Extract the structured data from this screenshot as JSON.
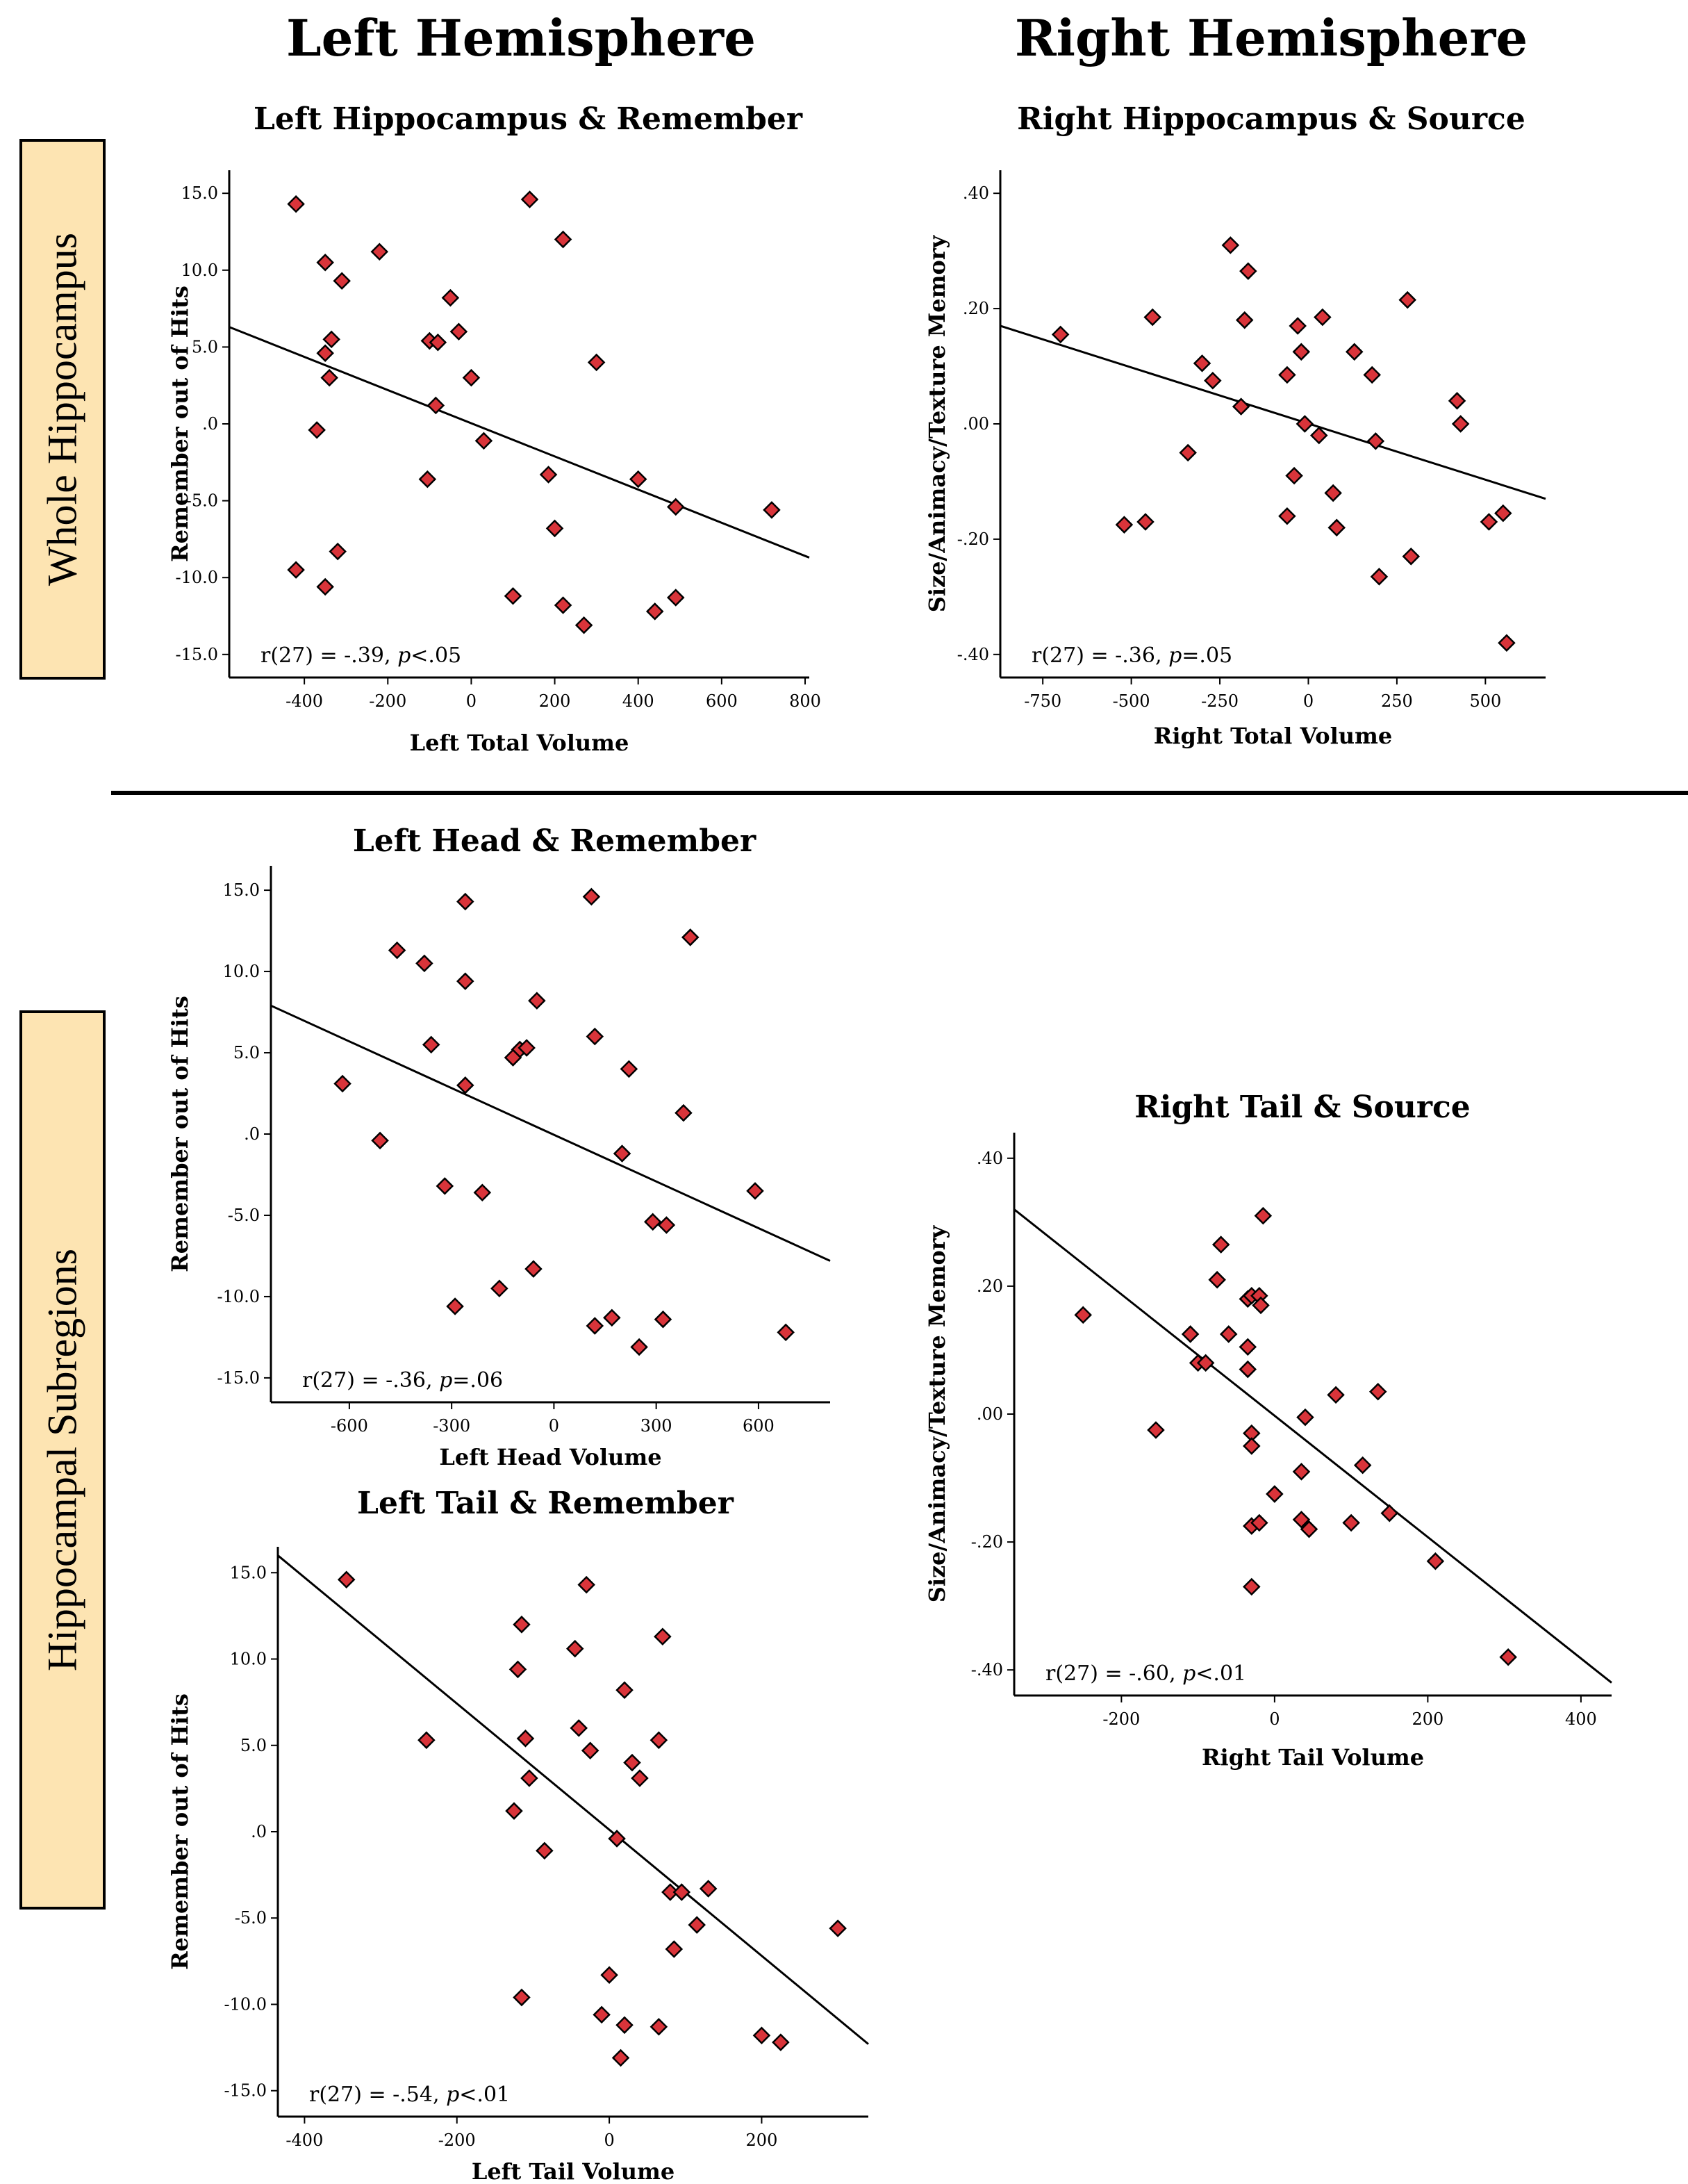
{
  "figure": {
    "left_heading": "Left Hemisphere",
    "right_heading": "Right Hemisphere",
    "row1_label": "Whole Hippocampus",
    "row2_label": "Hippocampal Subregions"
  },
  "colors": {
    "marker_fill": "#d9343a",
    "marker_stroke": "#000000",
    "line": "#000000"
  },
  "chart_data": [
    {
      "type": "scatter",
      "title": "Left Hippocampus & Remember",
      "xlabel": "Left Total Volume",
      "ylabel": "Remember out of Hits",
      "xlim": [
        -580,
        810
      ],
      "ylim": [
        -16.5,
        16.5
      ],
      "xticks": [
        -400,
        -200,
        0,
        200,
        400,
        600,
        800
      ],
      "xtick_labels": [
        "-400",
        "-200",
        "0",
        "200",
        "400",
        "600",
        "800"
      ],
      "yticks": [
        15,
        10,
        5,
        0,
        -5,
        -10,
        -15
      ],
      "ytick_labels": [
        "15.0",
        "10.0",
        "5.0",
        ".0",
        "-5.0",
        "-10.0",
        "-15.0"
      ],
      "stat_r": "r(27) = -.39, ",
      "stat_p_sym": "p",
      "stat_p_val": "<.05",
      "fit_line": [
        [
          -580,
          6.3
        ],
        [
          810,
          -8.7
        ]
      ],
      "x": [
        -420,
        -350,
        -310,
        -220,
        -335,
        -350,
        -340,
        -370,
        -100,
        -80,
        -50,
        -30,
        -85,
        0,
        30,
        -105,
        140,
        220,
        300,
        185,
        200,
        400,
        490,
        720,
        -420,
        -350,
        -320,
        100,
        220,
        270,
        440,
        490
      ],
      "y": [
        14.3,
        10.5,
        9.3,
        11.2,
        5.5,
        4.6,
        3.0,
        -0.4,
        5.4,
        5.3,
        8.2,
        6.0,
        1.2,
        3.0,
        -1.1,
        -3.6,
        14.6,
        12.0,
        4.0,
        -3.3,
        -6.8,
        -3.6,
        -5.4,
        -5.6,
        -9.5,
        -10.6,
        -8.3,
        -11.2,
        -11.8,
        -13.1,
        -12.2,
        -11.3
      ]
    },
    {
      "type": "scatter",
      "title": "Right Hippocampus & Source",
      "xlabel": "Right Total Volume",
      "ylabel": "Size/Animacy/Texture Memory",
      "xlim": [
        -870,
        670
      ],
      "ylim": [
        -0.44,
        0.44
      ],
      "xticks": [
        -750,
        -500,
        -250,
        0,
        250,
        500
      ],
      "xtick_labels": [
        "-750",
        "-500",
        "-250",
        "0",
        "250",
        "500"
      ],
      "yticks": [
        0.4,
        0.2,
        0.0,
        -0.2,
        -0.4
      ],
      "ytick_labels": [
        ".40",
        ".20",
        ".00",
        "-.20",
        "-.40"
      ],
      "stat_r": "r(27) = -.36, ",
      "stat_p_sym": "p",
      "stat_p_val": "=.05",
      "fit_line": [
        [
          -870,
          0.17
        ],
        [
          670,
          -0.13
        ]
      ],
      "x": [
        -700,
        -440,
        -220,
        -170,
        -180,
        -300,
        -270,
        -190,
        -340,
        -60,
        -30,
        -20,
        40,
        -10,
        130,
        280,
        180,
        190,
        420,
        430,
        -520,
        -460,
        -60,
        -40,
        30,
        70,
        80,
        200,
        290,
        510,
        550,
        560
      ],
      "y": [
        0.155,
        0.185,
        0.31,
        0.265,
        0.18,
        0.105,
        0.075,
        0.03,
        -0.05,
        0.085,
        0.17,
        0.125,
        0.185,
        0.0,
        0.125,
        0.215,
        0.085,
        -0.03,
        0.04,
        0.0,
        -0.175,
        -0.17,
        -0.16,
        -0.09,
        -0.02,
        -0.12,
        -0.18,
        -0.265,
        -0.23,
        -0.17,
        -0.155,
        -0.38
      ]
    },
    {
      "type": "scatter",
      "title": "Left Head & Remember",
      "xlabel": "Left Head Volume",
      "ylabel": "Remember out of Hits",
      "xlim": [
        -830,
        810
      ],
      "ylim": [
        -16.5,
        16.5
      ],
      "xticks": [
        -600,
        -300,
        0,
        300,
        600
      ],
      "xtick_labels": [
        "-600",
        "-300",
        "0",
        "300",
        "600"
      ],
      "yticks": [
        15,
        10,
        5,
        0,
        -5,
        -10,
        -15
      ],
      "ytick_labels": [
        "15.0",
        "10.0",
        "5.0",
        ".0",
        "-5.0",
        "-10.0",
        "-15.0"
      ],
      "stat_r": "r(27) = -.36, ",
      "stat_p_sym": "p",
      "stat_p_val": "=.06",
      "fit_line": [
        [
          -830,
          7.9
        ],
        [
          810,
          -7.8
        ]
      ],
      "x": [
        -460,
        -380,
        -260,
        -260,
        -360,
        -620,
        -510,
        -100,
        -80,
        -50,
        -120,
        -260,
        110,
        120,
        220,
        400,
        380,
        200,
        290,
        330,
        590,
        680,
        -320,
        -210,
        -160,
        -60,
        -290,
        120,
        170,
        320,
        250
      ],
      "y": [
        11.3,
        10.5,
        14.3,
        9.4,
        5.5,
        3.1,
        -0.4,
        5.2,
        5.3,
        8.2,
        4.7,
        3.0,
        14.6,
        6.0,
        4.0,
        12.1,
        1.3,
        -1.2,
        -5.4,
        -5.6,
        -3.5,
        -12.2,
        -3.2,
        -3.6,
        -9.5,
        -8.3,
        -10.6,
        -11.8,
        -11.3,
        -11.4,
        -13.1
      ]
    },
    {
      "type": "scatter",
      "title": "Left Tail & Remember",
      "xlabel": "Left Tail Volume",
      "ylabel": "Remember out of Hits",
      "xlim": [
        -435,
        340
      ],
      "ylim": [
        -16.5,
        16.5
      ],
      "xticks": [
        -400,
        -200,
        0,
        200
      ],
      "xtick_labels": [
        "-400",
        "-200",
        "0",
        "200"
      ],
      "yticks": [
        15,
        10,
        5,
        0,
        -5,
        -10,
        -15
      ],
      "ytick_labels": [
        "15.0",
        "10.0",
        "5.0",
        ".0",
        "-5.0",
        "-10.0",
        "-15.0"
      ],
      "stat_r": "r(27) = -.54, ",
      "stat_p_sym": "p",
      "stat_p_val": "<.01",
      "fit_line": [
        [
          -435,
          16.0
        ],
        [
          340,
          -12.3
        ]
      ],
      "x": [
        -345,
        -115,
        -120,
        -240,
        -45,
        -40,
        -110,
        -105,
        -30,
        -25,
        20,
        30,
        40,
        65,
        70,
        -125,
        -85,
        10,
        80,
        95,
        130,
        115,
        85,
        300,
        -115,
        0,
        -10,
        20,
        65,
        200,
        225,
        15
      ],
      "y": [
        14.6,
        12.0,
        9.4,
        5.3,
        10.6,
        6.0,
        5.4,
        3.1,
        14.3,
        4.7,
        8.2,
        4.0,
        3.1,
        5.3,
        11.3,
        1.2,
        -1.1,
        -0.4,
        -3.5,
        -3.5,
        -3.3,
        -5.4,
        -6.8,
        -5.6,
        -9.6,
        -8.3,
        -10.6,
        -11.2,
        -11.3,
        -11.8,
        -12.2,
        -13.1
      ]
    },
    {
      "type": "scatter",
      "title": "Right Tail & Source",
      "xlabel": "Right Tail Volume",
      "ylabel": "Size/Animacy/Texture Memory",
      "xlim": [
        -340,
        440
      ],
      "ylim": [
        -0.44,
        0.44
      ],
      "xticks": [
        -200,
        0,
        200,
        400
      ],
      "xtick_labels": [
        "-200",
        "0",
        "200",
        "400"
      ],
      "yticks": [
        0.4,
        0.2,
        0.0,
        -0.2,
        -0.4
      ],
      "ytick_labels": [
        ".40",
        ".20",
        ".00",
        "-.20",
        "-.40"
      ],
      "stat_r": "r(27) = -.60, ",
      "stat_p_sym": "p",
      "stat_p_val": "<.01",
      "fit_line": [
        [
          -340,
          0.32
        ],
        [
          440,
          -0.42
        ]
      ],
      "x": [
        -250,
        -110,
        -100,
        -90,
        -155,
        -70,
        -75,
        -60,
        -35,
        -30,
        -20,
        -18,
        -15,
        -35,
        -35,
        -30,
        -30,
        40,
        80,
        135,
        115,
        -30,
        0,
        35,
        100,
        150,
        210,
        305,
        -30,
        -20,
        45,
        35
      ],
      "y": [
        0.155,
        0.125,
        0.08,
        0.08,
        -0.025,
        0.265,
        0.21,
        0.125,
        0.18,
        0.185,
        0.185,
        0.17,
        0.31,
        0.105,
        0.07,
        -0.03,
        -0.05,
        -0.005,
        0.03,
        0.035,
        -0.08,
        -0.27,
        -0.125,
        -0.09,
        -0.17,
        -0.155,
        -0.23,
        -0.38,
        -0.175,
        -0.17,
        -0.18,
        -0.165
      ]
    }
  ]
}
